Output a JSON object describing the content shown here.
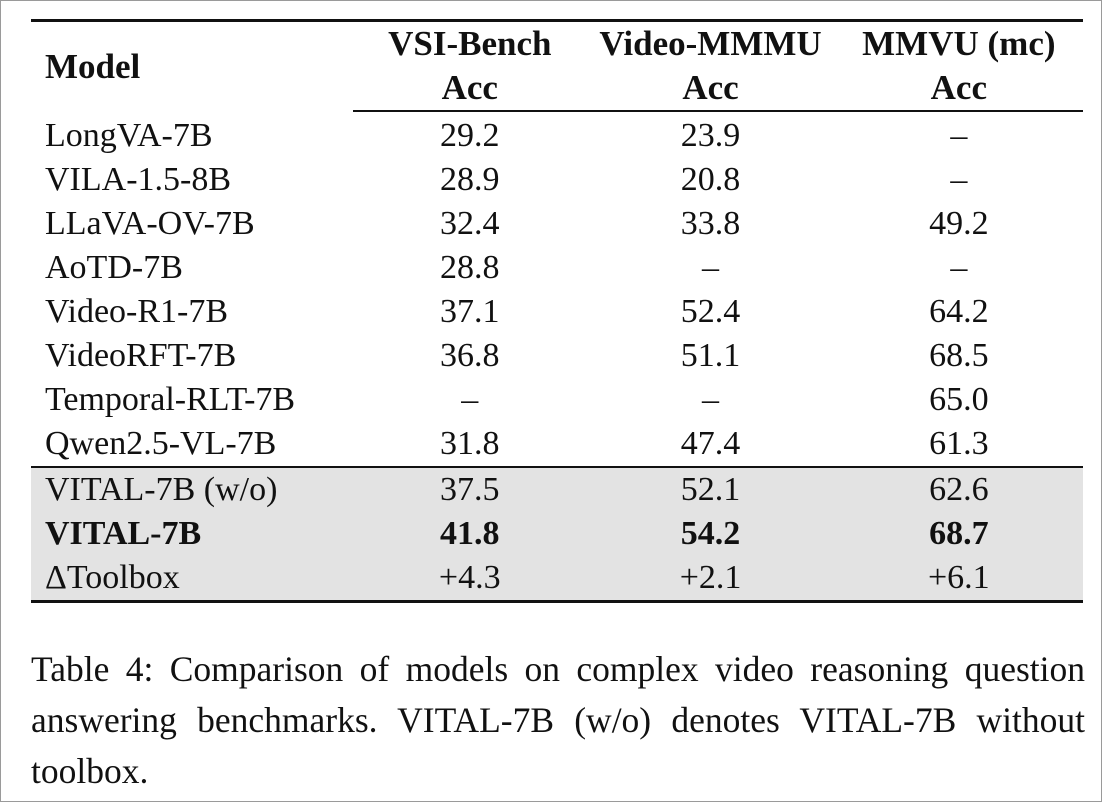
{
  "table": {
    "headers": {
      "model": "Model",
      "benchmarks": [
        "VSI-Bench",
        "Video-MMMU",
        "MMVU (mc)"
      ],
      "metric": [
        "Acc",
        "Acc",
        "Acc"
      ]
    },
    "rows": [
      {
        "name": "LongVA-7B",
        "values": [
          "29.2",
          "23.9",
          "–"
        ]
      },
      {
        "name": "VILA-1.5-8B",
        "values": [
          "28.9",
          "20.8",
          "–"
        ]
      },
      {
        "name": "LLaVA-OV-7B",
        "values": [
          "32.4",
          "33.8",
          "49.2"
        ]
      },
      {
        "name": "AoTD-7B",
        "values": [
          "28.8",
          "–",
          "–"
        ]
      },
      {
        "name": "Video-R1-7B",
        "values": [
          "37.1",
          "52.4",
          "64.2"
        ]
      },
      {
        "name": "VideoRFT-7B",
        "values": [
          "36.8",
          "51.1",
          "68.5"
        ]
      },
      {
        "name": "Temporal-RLT-7B",
        "values": [
          "–",
          "–",
          "65.0"
        ]
      },
      {
        "name": "Qwen2.5-VL-7B",
        "values": [
          "31.8",
          "47.4",
          "61.3"
        ]
      }
    ],
    "highlight_rows": [
      {
        "name": "VITAL-7B (w/o)",
        "values": [
          "37.5",
          "52.1",
          "62.6"
        ]
      },
      {
        "name": "VITAL-7B",
        "values": [
          "41.8",
          "54.2",
          "68.7"
        ]
      },
      {
        "name": "ΔToolbox",
        "values": [
          "+4.3",
          "+2.1",
          "+6.1"
        ]
      }
    ],
    "highlight_color": "#e3e3e3"
  },
  "caption": "Table 4: Comparison of models on complex video reasoning question answering benchmarks. VITAL-7B (w/o) denotes VITAL-7B without toolbox."
}
